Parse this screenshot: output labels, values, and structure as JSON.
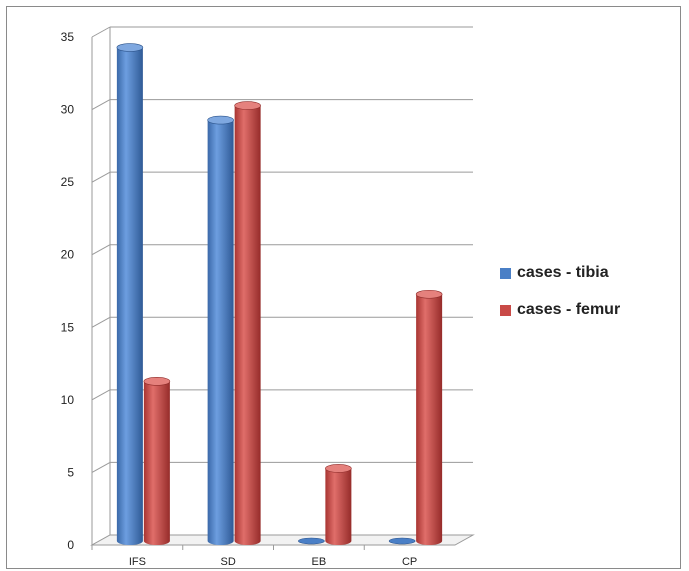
{
  "chart_data": {
    "type": "bar",
    "title": "",
    "xlabel": "",
    "ylabel": "",
    "categories": [
      "IFS",
      "SD",
      "EB",
      "CP"
    ],
    "series": [
      {
        "name": "cases - tibia",
        "values": [
          34,
          29,
          0,
          0
        ],
        "color": "#4a7fc6"
      },
      {
        "name": "cases - femur",
        "values": [
          11,
          30,
          5,
          17
        ],
        "color": "#c94a47"
      }
    ],
    "ylim": [
      0,
      35
    ],
    "yticks": [
      "0",
      "5",
      "10",
      "15",
      "20",
      "25",
      "30",
      "35"
    ],
    "grid": true,
    "legend_position": "right"
  }
}
